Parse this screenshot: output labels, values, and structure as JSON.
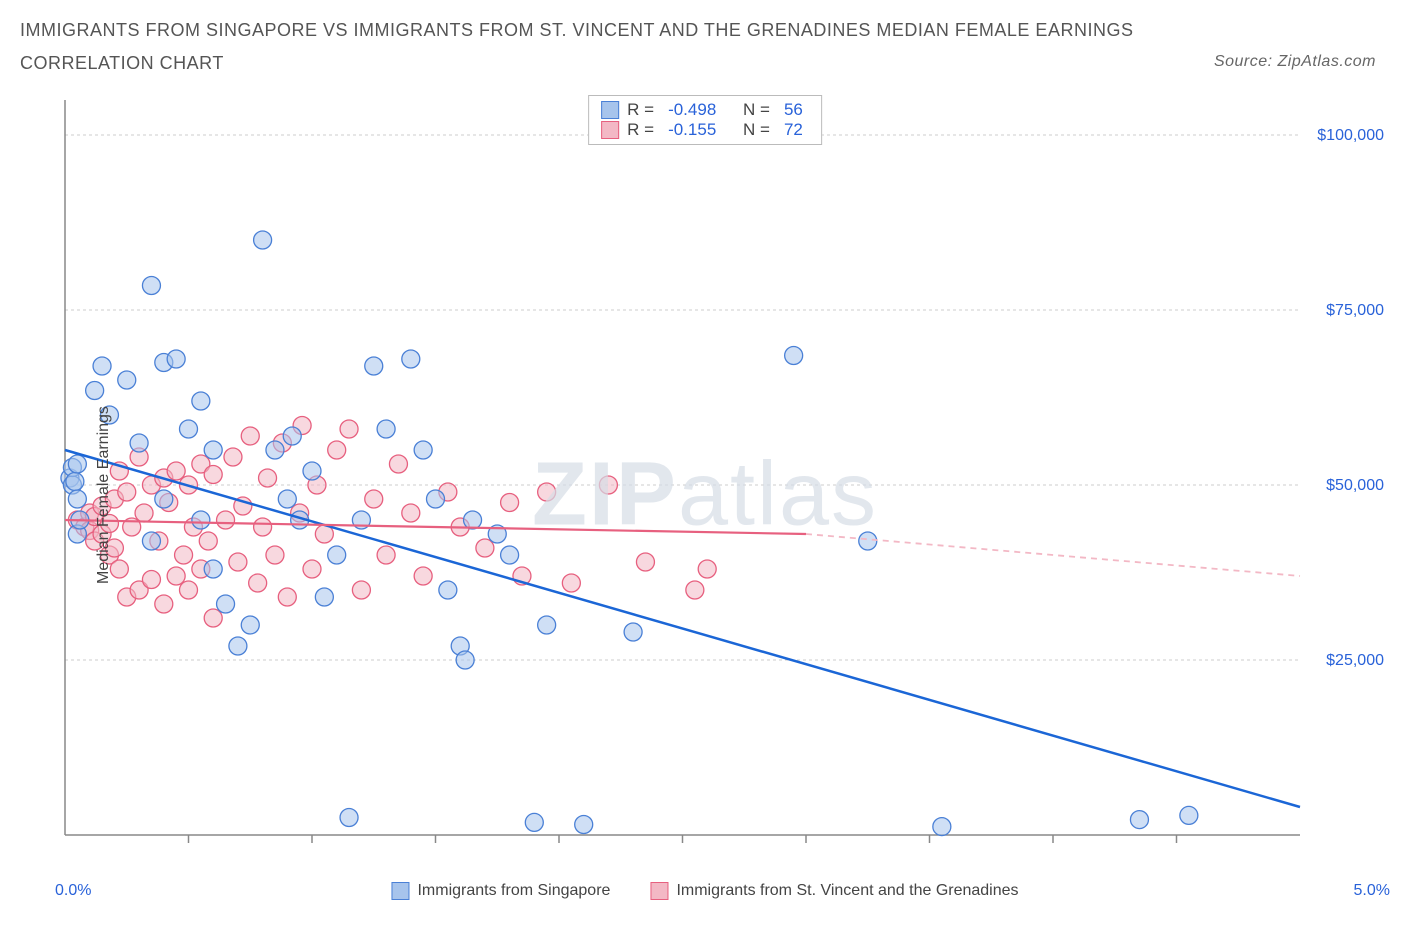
{
  "title_line1": "IMMIGRANTS FROM SINGAPORE VS IMMIGRANTS FROM ST. VINCENT AND THE GRENADINES MEDIAN FEMALE EARNINGS",
  "title_line2": "CORRELATION CHART",
  "source_label": "Source: ZipAtlas.com",
  "watermark_bold": "ZIP",
  "watermark_rest": "atlas",
  "ylabel": "Median Female Earnings",
  "chart": {
    "type": "scatter",
    "x_domain": [
      0.0,
      5.0
    ],
    "y_domain": [
      0,
      105000
    ],
    "x_tick_label_left": "0.0%",
    "x_tick_label_right": "5.0%",
    "x_minor_ticks": [
      0.5,
      1.0,
      1.5,
      2.0,
      2.5,
      3.0,
      3.5,
      4.0,
      4.5
    ],
    "y_ticks": [
      {
        "v": 25000,
        "label": "$25,000"
      },
      {
        "v": 50000,
        "label": "$50,000"
      },
      {
        "v": 75000,
        "label": "$75,000"
      },
      {
        "v": 100000,
        "label": "$100,000"
      }
    ],
    "plot_bg": "#ffffff",
    "grid_color": "#cccccc",
    "axis_color": "#888888",
    "series": [
      {
        "name": "Immigrants from Singapore",
        "color_fill": "#a7c4ec",
        "color_stroke": "#4a80d6",
        "fill_opacity": 0.55,
        "marker_radius": 9,
        "R": "-0.498",
        "N": "56",
        "trend": {
          "x1": 0.0,
          "y1": 55000,
          "x2": 5.0,
          "y2": 4000,
          "color": "#1b66d6",
          "width": 2.5,
          "dash": "none"
        },
        "points": [
          [
            0.02,
            51000
          ],
          [
            0.03,
            50000
          ],
          [
            0.03,
            52500
          ],
          [
            0.04,
            50500
          ],
          [
            0.05,
            48000
          ],
          [
            0.05,
            53000
          ],
          [
            0.05,
            43000
          ],
          [
            0.06,
            45000
          ],
          [
            0.12,
            63500
          ],
          [
            0.15,
            67000
          ],
          [
            0.18,
            60000
          ],
          [
            0.25,
            65000
          ],
          [
            0.35,
            78500
          ],
          [
            0.3,
            56000
          ],
          [
            0.4,
            67500
          ],
          [
            0.45,
            68000
          ],
          [
            0.5,
            58000
          ],
          [
            0.55,
            62000
          ],
          [
            0.6,
            55000
          ],
          [
            0.35,
            42000
          ],
          [
            0.4,
            48000
          ],
          [
            0.55,
            45000
          ],
          [
            0.6,
            38000
          ],
          [
            0.65,
            33000
          ],
          [
            0.7,
            27000
          ],
          [
            0.75,
            30000
          ],
          [
            0.8,
            85000
          ],
          [
            0.85,
            55000
          ],
          [
            0.9,
            48000
          ],
          [
            0.92,
            57000
          ],
          [
            0.95,
            45000
          ],
          [
            1.0,
            52000
          ],
          [
            1.05,
            34000
          ],
          [
            1.1,
            40000
          ],
          [
            1.15,
            2500
          ],
          [
            1.2,
            45000
          ],
          [
            1.25,
            67000
          ],
          [
            1.3,
            58000
          ],
          [
            1.4,
            68000
          ],
          [
            1.45,
            55000
          ],
          [
            1.5,
            48000
          ],
          [
            1.55,
            35000
          ],
          [
            1.6,
            27000
          ],
          [
            1.62,
            25000
          ],
          [
            1.65,
            45000
          ],
          [
            1.75,
            43000
          ],
          [
            1.8,
            40000
          ],
          [
            1.9,
            1800
          ],
          [
            1.95,
            30000
          ],
          [
            2.1,
            1500
          ],
          [
            2.3,
            29000
          ],
          [
            2.95,
            68500
          ],
          [
            3.25,
            42000
          ],
          [
            3.55,
            1200
          ],
          [
            4.35,
            2200
          ],
          [
            4.55,
            2800
          ]
        ]
      },
      {
        "name": "Immigrants from St. Vincent and the Grenadines",
        "color_fill": "#f3b8c5",
        "color_stroke": "#e7607f",
        "fill_opacity": 0.55,
        "marker_radius": 9,
        "R": "-0.155",
        "N": "72",
        "trend_solid": {
          "x1": 0.0,
          "y1": 45000,
          "x2": 3.0,
          "y2": 43000,
          "color": "#e7607f",
          "width": 2.2
        },
        "trend_dash": {
          "x1": 3.0,
          "y1": 43000,
          "x2": 5.0,
          "y2": 37000,
          "color": "#f3b8c5",
          "width": 1.8,
          "dash": "6,5"
        },
        "points": [
          [
            0.05,
            45000
          ],
          [
            0.08,
            44000
          ],
          [
            0.1,
            43500
          ],
          [
            0.1,
            46000
          ],
          [
            0.12,
            42000
          ],
          [
            0.12,
            45500
          ],
          [
            0.15,
            47000
          ],
          [
            0.15,
            43000
          ],
          [
            0.18,
            44500
          ],
          [
            0.18,
            40000
          ],
          [
            0.2,
            48000
          ],
          [
            0.2,
            41000
          ],
          [
            0.22,
            52000
          ],
          [
            0.22,
            38000
          ],
          [
            0.25,
            49000
          ],
          [
            0.25,
            34000
          ],
          [
            0.27,
            44000
          ],
          [
            0.3,
            54000
          ],
          [
            0.3,
            35000
          ],
          [
            0.32,
            46000
          ],
          [
            0.35,
            50000
          ],
          [
            0.35,
            36500
          ],
          [
            0.38,
            42000
          ],
          [
            0.4,
            51000
          ],
          [
            0.4,
            33000
          ],
          [
            0.42,
            47500
          ],
          [
            0.45,
            52000
          ],
          [
            0.45,
            37000
          ],
          [
            0.48,
            40000
          ],
          [
            0.5,
            50000
          ],
          [
            0.5,
            35000
          ],
          [
            0.52,
            44000
          ],
          [
            0.55,
            53000
          ],
          [
            0.55,
            38000
          ],
          [
            0.58,
            42000
          ],
          [
            0.6,
            51500
          ],
          [
            0.6,
            31000
          ],
          [
            0.65,
            45000
          ],
          [
            0.68,
            54000
          ],
          [
            0.7,
            39000
          ],
          [
            0.72,
            47000
          ],
          [
            0.75,
            57000
          ],
          [
            0.78,
            36000
          ],
          [
            0.8,
            44000
          ],
          [
            0.82,
            51000
          ],
          [
            0.85,
            40000
          ],
          [
            0.88,
            56000
          ],
          [
            0.9,
            34000
          ],
          [
            0.95,
            46000
          ],
          [
            0.96,
            58500
          ],
          [
            1.0,
            38000
          ],
          [
            1.02,
            50000
          ],
          [
            1.05,
            43000
          ],
          [
            1.1,
            55000
          ],
          [
            1.15,
            58000
          ],
          [
            1.2,
            35000
          ],
          [
            1.25,
            48000
          ],
          [
            1.3,
            40000
          ],
          [
            1.35,
            53000
          ],
          [
            1.4,
            46000
          ],
          [
            1.45,
            37000
          ],
          [
            1.55,
            49000
          ],
          [
            1.6,
            44000
          ],
          [
            1.7,
            41000
          ],
          [
            1.8,
            47500
          ],
          [
            1.85,
            37000
          ],
          [
            1.95,
            49000
          ],
          [
            2.05,
            36000
          ],
          [
            2.2,
            50000
          ],
          [
            2.35,
            39000
          ],
          [
            2.55,
            35000
          ],
          [
            2.6,
            38000
          ]
        ]
      }
    ]
  },
  "legend_top": {
    "r_label": "R =",
    "n_label": "N ="
  },
  "legend_bottom": [
    {
      "series_index": 0
    },
    {
      "series_index": 1
    }
  ]
}
